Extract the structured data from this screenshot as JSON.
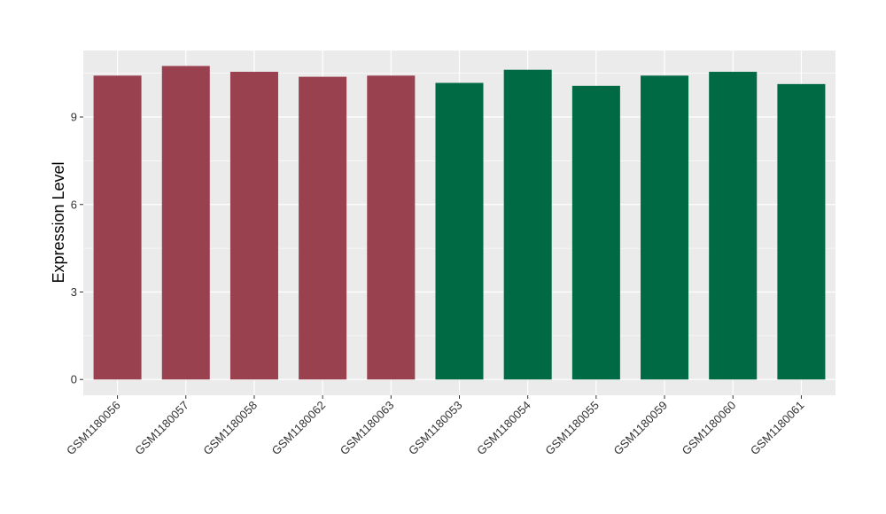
{
  "chart_data": {
    "type": "bar",
    "title": "",
    "xlabel": "",
    "ylabel": "Expression Level",
    "categories": [
      "GSM1180056",
      "GSM1180057",
      "GSM1180058",
      "GSM1180062",
      "GSM1180063",
      "GSM1180053",
      "GSM1180054",
      "GSM1180055",
      "GSM1180059",
      "GSM1180060",
      "GSM1180061"
    ],
    "values": [
      10.42,
      10.75,
      10.55,
      10.38,
      10.42,
      10.17,
      10.62,
      10.07,
      10.42,
      10.55,
      10.13
    ],
    "bar_colors": [
      "#99414f",
      "#99414f",
      "#99414f",
      "#99414f",
      "#99414f",
      "#006a45",
      "#006a45",
      "#006a45",
      "#006a45",
      "#006a45",
      "#006a45"
    ],
    "yticks": [
      0,
      3,
      6,
      9
    ],
    "ylim": [
      -0.54,
      11.28
    ],
    "grid": true,
    "panel_background": "#ebebeb",
    "grid_color": "#ffffff",
    "legend": "none"
  }
}
